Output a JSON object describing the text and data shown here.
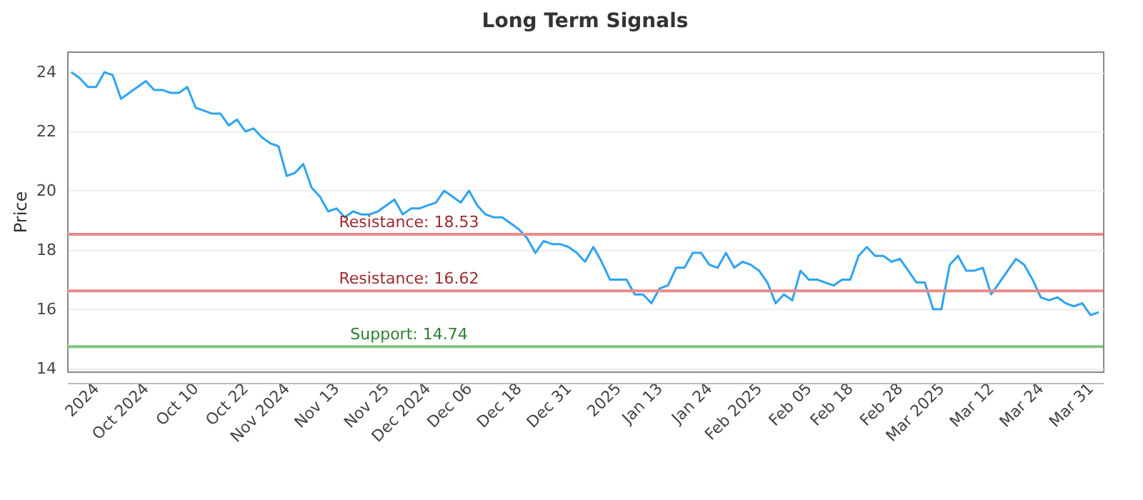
{
  "chart_data": {
    "type": "line",
    "title": "Long Term Signals",
    "ylabel": "Price",
    "categories": [
      null,
      null,
      null,
      "2024",
      null,
      null,
      null,
      null,
      null,
      "Oct 2024",
      null,
      null,
      null,
      null,
      null,
      "Oct 10",
      null,
      null,
      null,
      null,
      null,
      "Oct 22",
      null,
      null,
      null,
      null,
      "Nov 2024",
      null,
      null,
      null,
      null,
      null,
      "Nov 13",
      null,
      null,
      null,
      null,
      null,
      "Nov 25",
      null,
      null,
      null,
      null,
      "Dec 2024",
      null,
      null,
      null,
      null,
      "Dec 06",
      null,
      null,
      null,
      null,
      null,
      "Dec 18",
      null,
      null,
      null,
      null,
      null,
      "Dec 31",
      null,
      null,
      null,
      null,
      null,
      "2025",
      null,
      null,
      null,
      null,
      "Jan 13",
      null,
      null,
      null,
      null,
      null,
      "Jan 24",
      null,
      null,
      null,
      null,
      null,
      "Feb 2025",
      null,
      null,
      null,
      null,
      null,
      "Feb 05",
      null,
      null,
      null,
      null,
      "Feb 18",
      null,
      null,
      null,
      null,
      null,
      "Feb 28",
      null,
      null,
      null,
      null,
      "Mar 2025",
      null,
      null,
      null,
      null,
      null,
      "Mar 12",
      null,
      null,
      null,
      null,
      null,
      "Mar 24",
      null,
      null,
      null,
      null,
      null,
      "Mar 31",
      null
    ],
    "series": [
      {
        "color": "#2ea3f2",
        "values": [
          24.0,
          23.8,
          23.5,
          23.5,
          24.0,
          23.9,
          23.1,
          23.3,
          23.5,
          23.7,
          23.4,
          23.4,
          23.3,
          23.3,
          23.5,
          22.8,
          22.7,
          22.6,
          22.6,
          22.2,
          22.4,
          22.0,
          22.1,
          21.8,
          21.6,
          21.5,
          20.5,
          20.6,
          20.9,
          20.1,
          19.8,
          19.3,
          19.4,
          19.1,
          19.3,
          19.2,
          19.2,
          19.3,
          19.5,
          19.7,
          19.2,
          19.4,
          19.4,
          19.5,
          19.6,
          20.0,
          19.8,
          19.6,
          20.0,
          19.5,
          19.2,
          19.1,
          19.1,
          18.9,
          18.7,
          18.4,
          17.9,
          18.3,
          18.2,
          18.2,
          18.1,
          17.9,
          17.6,
          18.1,
          17.6,
          17.0,
          17.0,
          17.0,
          16.5,
          16.5,
          16.2,
          16.7,
          16.8,
          17.4,
          17.4,
          17.9,
          17.9,
          17.5,
          17.4,
          17.9,
          17.4,
          17.6,
          17.5,
          17.3,
          16.9,
          16.2,
          16.5,
          16.3,
          17.3,
          17.0,
          17.0,
          16.9,
          16.8,
          17.0,
          17.0,
          17.8,
          18.1,
          17.8,
          17.8,
          17.6,
          17.7,
          17.3,
          16.9,
          16.9,
          16.0,
          16.0,
          17.5,
          17.8,
          17.3,
          17.3,
          17.4,
          16.5,
          16.9,
          17.3,
          17.7,
          17.5,
          17.0,
          16.4,
          16.3,
          16.4,
          16.2,
          16.1,
          16.2,
          15.8,
          15.9
        ]
      }
    ],
    "ylim": [
      13.9,
      24.7
    ],
    "yticks": [
      14,
      16,
      18,
      20,
      22,
      24
    ],
    "grid": "y",
    "ref_lines": [
      {
        "axis": "y",
        "value": 18.53,
        "label": "Resistance: 18.53",
        "color": "#e88a8a"
      },
      {
        "axis": "y",
        "value": 16.62,
        "label": "Resistance: 16.62",
        "color": "#e88a8a"
      },
      {
        "axis": "y",
        "value": 14.74,
        "label": "Support: 14.74",
        "color": "#80c680"
      }
    ]
  }
}
